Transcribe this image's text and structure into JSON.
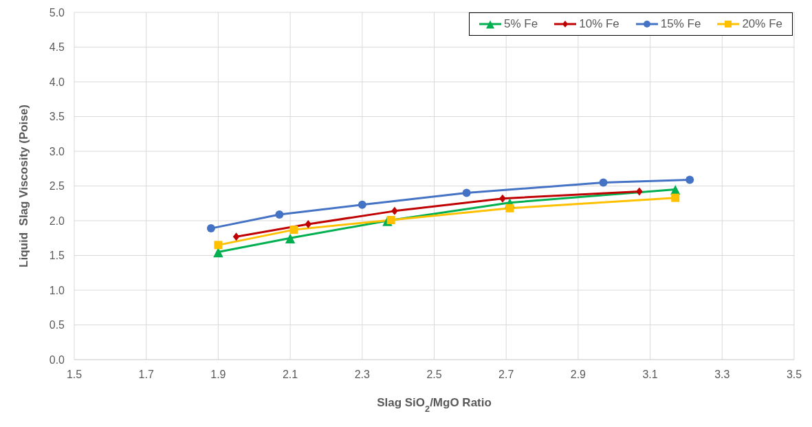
{
  "chart_data": {
    "type": "line",
    "xlabel": "Slag SiO$_{2}$/MgO Ratio",
    "ylabel": "Liquid  Slag Viscosity (Poise)",
    "xlim": [
      1.5,
      3.5
    ],
    "xticks": [
      1.5,
      1.7,
      1.9,
      2.1,
      2.3,
      2.5,
      2.7,
      2.9,
      3.1,
      3.3,
      3.5
    ],
    "ylim": [
      0,
      5
    ],
    "yticks": [
      {
        "value": 0,
        "label": "0.0"
      },
      {
        "value": 0.5,
        "label": "0.5"
      },
      {
        "value": 1,
        "label": "1.0"
      },
      {
        "value": 1.5,
        "label": "1.5"
      },
      {
        "value": 2,
        "label": "2.0"
      },
      {
        "value": 2.5,
        "label": "2.5"
      },
      {
        "value": 3,
        "label": "3.0"
      },
      {
        "value": 3.5,
        "label": "3.5"
      },
      {
        "value": 4,
        "label": "4.0"
      },
      {
        "value": 4.5,
        "label": "4.5"
      },
      {
        "value": 5,
        "label": "5.0"
      }
    ],
    "grid": true,
    "legend": "top right",
    "line_style": "solid",
    "series": [
      {
        "name": "5% Fe",
        "color": "#00b050",
        "marker": "triangle",
        "x": [
          1.9,
          2.1,
          2.37,
          2.71,
          3.17
        ],
        "values": [
          1.55,
          1.75,
          2.0,
          2.26,
          2.45
        ]
      },
      {
        "name": "10% Fe",
        "color": "#c00000",
        "marker": "diamond",
        "x": [
          1.95,
          2.15,
          2.39,
          2.69,
          3.07
        ],
        "values": [
          1.77,
          1.95,
          2.14,
          2.32,
          2.42
        ]
      },
      {
        "name": "15% Fe",
        "color": "#4472c4",
        "marker": "circle",
        "x": [
          1.88,
          2.07,
          2.3,
          2.59,
          2.97,
          3.21
        ],
        "values": [
          1.89,
          2.09,
          2.23,
          2.4,
          2.55,
          2.59
        ]
      },
      {
        "name": "20% Fe",
        "color": "#ffc000",
        "marker": "square",
        "x": [
          1.9,
          2.11,
          2.38,
          2.71,
          3.17
        ],
        "values": [
          1.65,
          1.87,
          2.01,
          2.18,
          2.33
        ]
      }
    ]
  }
}
